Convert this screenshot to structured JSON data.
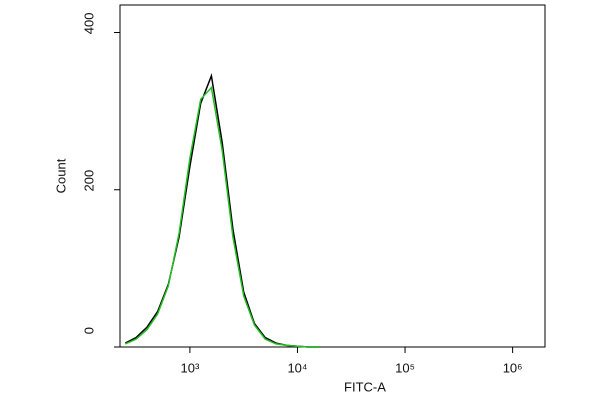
{
  "chart_data": {
    "type": "line",
    "x_label": "FITC-A",
    "y_label": "Count",
    "x": [
      251,
      316,
      398,
      501,
      631,
      794,
      1000,
      1259,
      1585,
      1995,
      2512,
      3162,
      3981,
      5012,
      6310,
      7943,
      10000,
      12589,
      15849
    ],
    "series": [
      {
        "name": "black",
        "color": "#000000",
        "values": [
          5,
          12,
          25,
          45,
          80,
          140,
          230,
          310,
          345,
          260,
          150,
          70,
          30,
          12,
          5,
          2,
          1,
          0,
          0
        ]
      },
      {
        "name": "green",
        "color": "#22c022",
        "values": [
          4,
          10,
          22,
          42,
          78,
          145,
          240,
          315,
          330,
          250,
          140,
          65,
          28,
          10,
          4,
          2,
          1,
          0,
          0
        ]
      }
    ],
    "xscale": "log",
    "xlim": [
      224,
      2000000
    ],
    "xticks": [
      {
        "value": 1000,
        "label": "10³"
      },
      {
        "value": 10000,
        "label": "10⁴"
      },
      {
        "value": 100000,
        "label": "10⁵"
      },
      {
        "value": 1000000,
        "label": "10⁶"
      }
    ],
    "ylim": [
      0,
      435
    ],
    "yticks": [
      0,
      200,
      400
    ]
  }
}
